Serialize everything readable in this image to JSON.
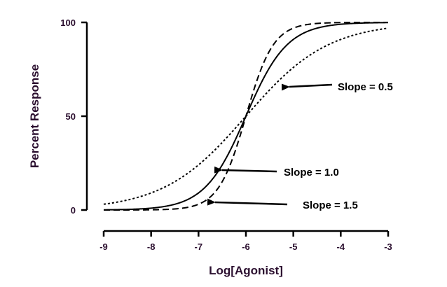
{
  "chart_data": {
    "type": "line",
    "xlabel": "Log[Agonist]",
    "ylabel": "Percent Response",
    "xlim": [
      -9,
      -3
    ],
    "ylim": [
      0,
      100
    ],
    "x_ticks": [
      "-9",
      "-8",
      "-7",
      "-6",
      "-5",
      "-4",
      "-3"
    ],
    "y_ticks": [
      "0",
      "50",
      "100"
    ],
    "grid": false,
    "log_ec50": -6,
    "series": [
      {
        "slope": 0.5,
        "style": "dotted",
        "color": "#000000",
        "x": [
          -9,
          -8.5,
          -8,
          -7.5,
          -7,
          -6.5,
          -6,
          -5.5,
          -5,
          -4.5,
          -4,
          -3.5,
          -3
        ],
        "values": [
          3.1,
          5.3,
          9.1,
          15.1,
          24.0,
          36.0,
          50.0,
          64.0,
          76.0,
          84.9,
          90.9,
          94.7,
          96.9
        ]
      },
      {
        "slope": 1.0,
        "style": "solid",
        "color": "#000000",
        "x": [
          -9,
          -8.5,
          -8,
          -7.5,
          -7,
          -6.5,
          -6,
          -5.5,
          -5,
          -4.5,
          -4,
          -3.5,
          -3
        ],
        "values": [
          0.1,
          0.3,
          1.0,
          3.1,
          9.1,
          24.0,
          50.0,
          76.0,
          90.9,
          96.9,
          99.0,
          99.7,
          99.9
        ]
      },
      {
        "slope": 1.5,
        "style": "dashed",
        "color": "#000000",
        "x": [
          -9,
          -8.5,
          -8,
          -7.5,
          -7,
          -6.5,
          -6,
          -5.5,
          -5,
          -4.5,
          -4,
          -3.5,
          -3
        ],
        "values": [
          0.0,
          0.0,
          0.1,
          0.6,
          3.1,
          15.1,
          50.0,
          84.9,
          96.9,
          99.4,
          99.9,
          100.0,
          100.0
        ]
      }
    ],
    "annotations": [
      {
        "text": "Slope = 0.5",
        "target_series": 0
      },
      {
        "text": "Slope = 1.0",
        "target_series": 1
      },
      {
        "text": "Slope = 1.5",
        "target_series": 2
      }
    ]
  }
}
